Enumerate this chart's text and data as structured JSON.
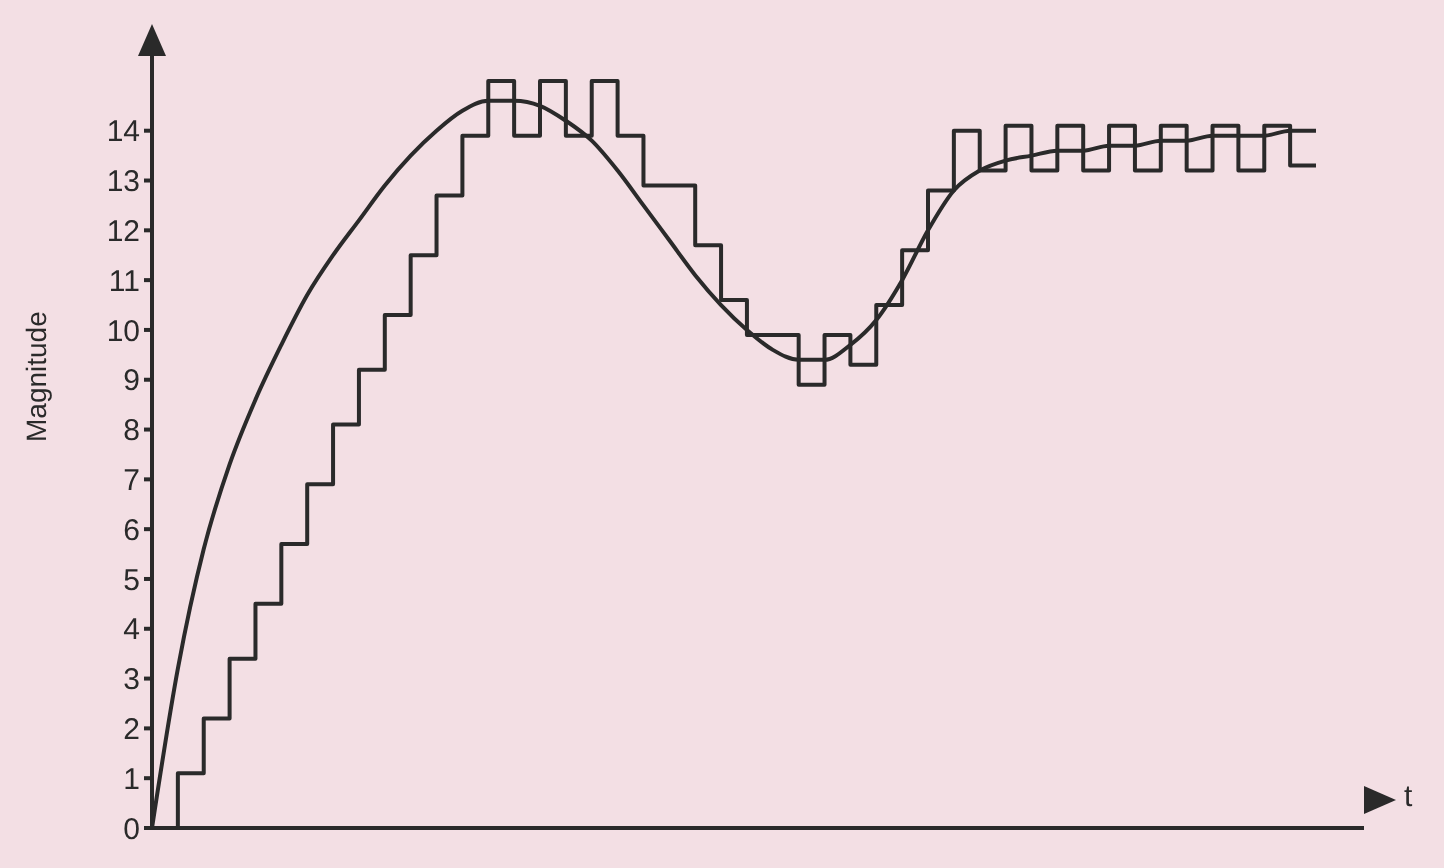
{
  "chart_data": {
    "type": "line",
    "xlabel": "t",
    "ylabel": "Magnitude",
    "categories": [
      null,
      null,
      null,
      null,
      null,
      null,
      null,
      null,
      null,
      null,
      null,
      null,
      null,
      null,
      null,
      null,
      null,
      null,
      null,
      null,
      null,
      null,
      null,
      null,
      null,
      null,
      null,
      null,
      null,
      null,
      null,
      null,
      null,
      null,
      null,
      null,
      null,
      null,
      null,
      null,
      null,
      null,
      null,
      null,
      null,
      null
    ],
    "series": [
      {
        "type": "line",
        "color": "#2a2a2a",
        "values": [
          0,
          3.2,
          5.6,
          7.3,
          8.6,
          9.7,
          10.7,
          11.5,
          12.2,
          12.9,
          13.5,
          14.0,
          14.4,
          14.6,
          14.6,
          14.5,
          14.2,
          13.8,
          13.2,
          12.5,
          11.8,
          11.1,
          10.5,
          10.0,
          9.6,
          9.4,
          9.4,
          9.7,
          10.2,
          11.0,
          12.0,
          12.8,
          13.2,
          13.4,
          13.5,
          13.6,
          13.6,
          13.7,
          13.7,
          13.8,
          13.8,
          13.9,
          13.9,
          13.9,
          14.0,
          14.0
        ]
      },
      {
        "type": "step",
        "color": "#2a2a2a",
        "values": [
          0,
          1.1,
          2.2,
          3.4,
          4.5,
          5.7,
          6.9,
          8.1,
          9.2,
          10.3,
          11.5,
          12.7,
          13.9,
          15.0,
          13.9,
          15.0,
          13.9,
          15.0,
          13.9,
          12.9,
          12.9,
          11.7,
          10.6,
          9.9,
          9.9,
          8.9,
          9.9,
          9.3,
          10.5,
          11.6,
          12.8,
          14.0,
          13.2,
          14.1,
          13.2,
          14.1,
          13.2,
          14.1,
          13.2,
          14.1,
          13.2,
          14.1,
          13.2,
          14.1,
          13.3,
          13.3
        ]
      }
    ],
    "ylim": [
      0,
      15.5
    ],
    "yticks": [
      0,
      1,
      2,
      3,
      4,
      5,
      6,
      7,
      8,
      9,
      10,
      11,
      12,
      13,
      14
    ],
    "grid": false,
    "legend": false,
    "marker": "none",
    "line_style": "solid"
  }
}
